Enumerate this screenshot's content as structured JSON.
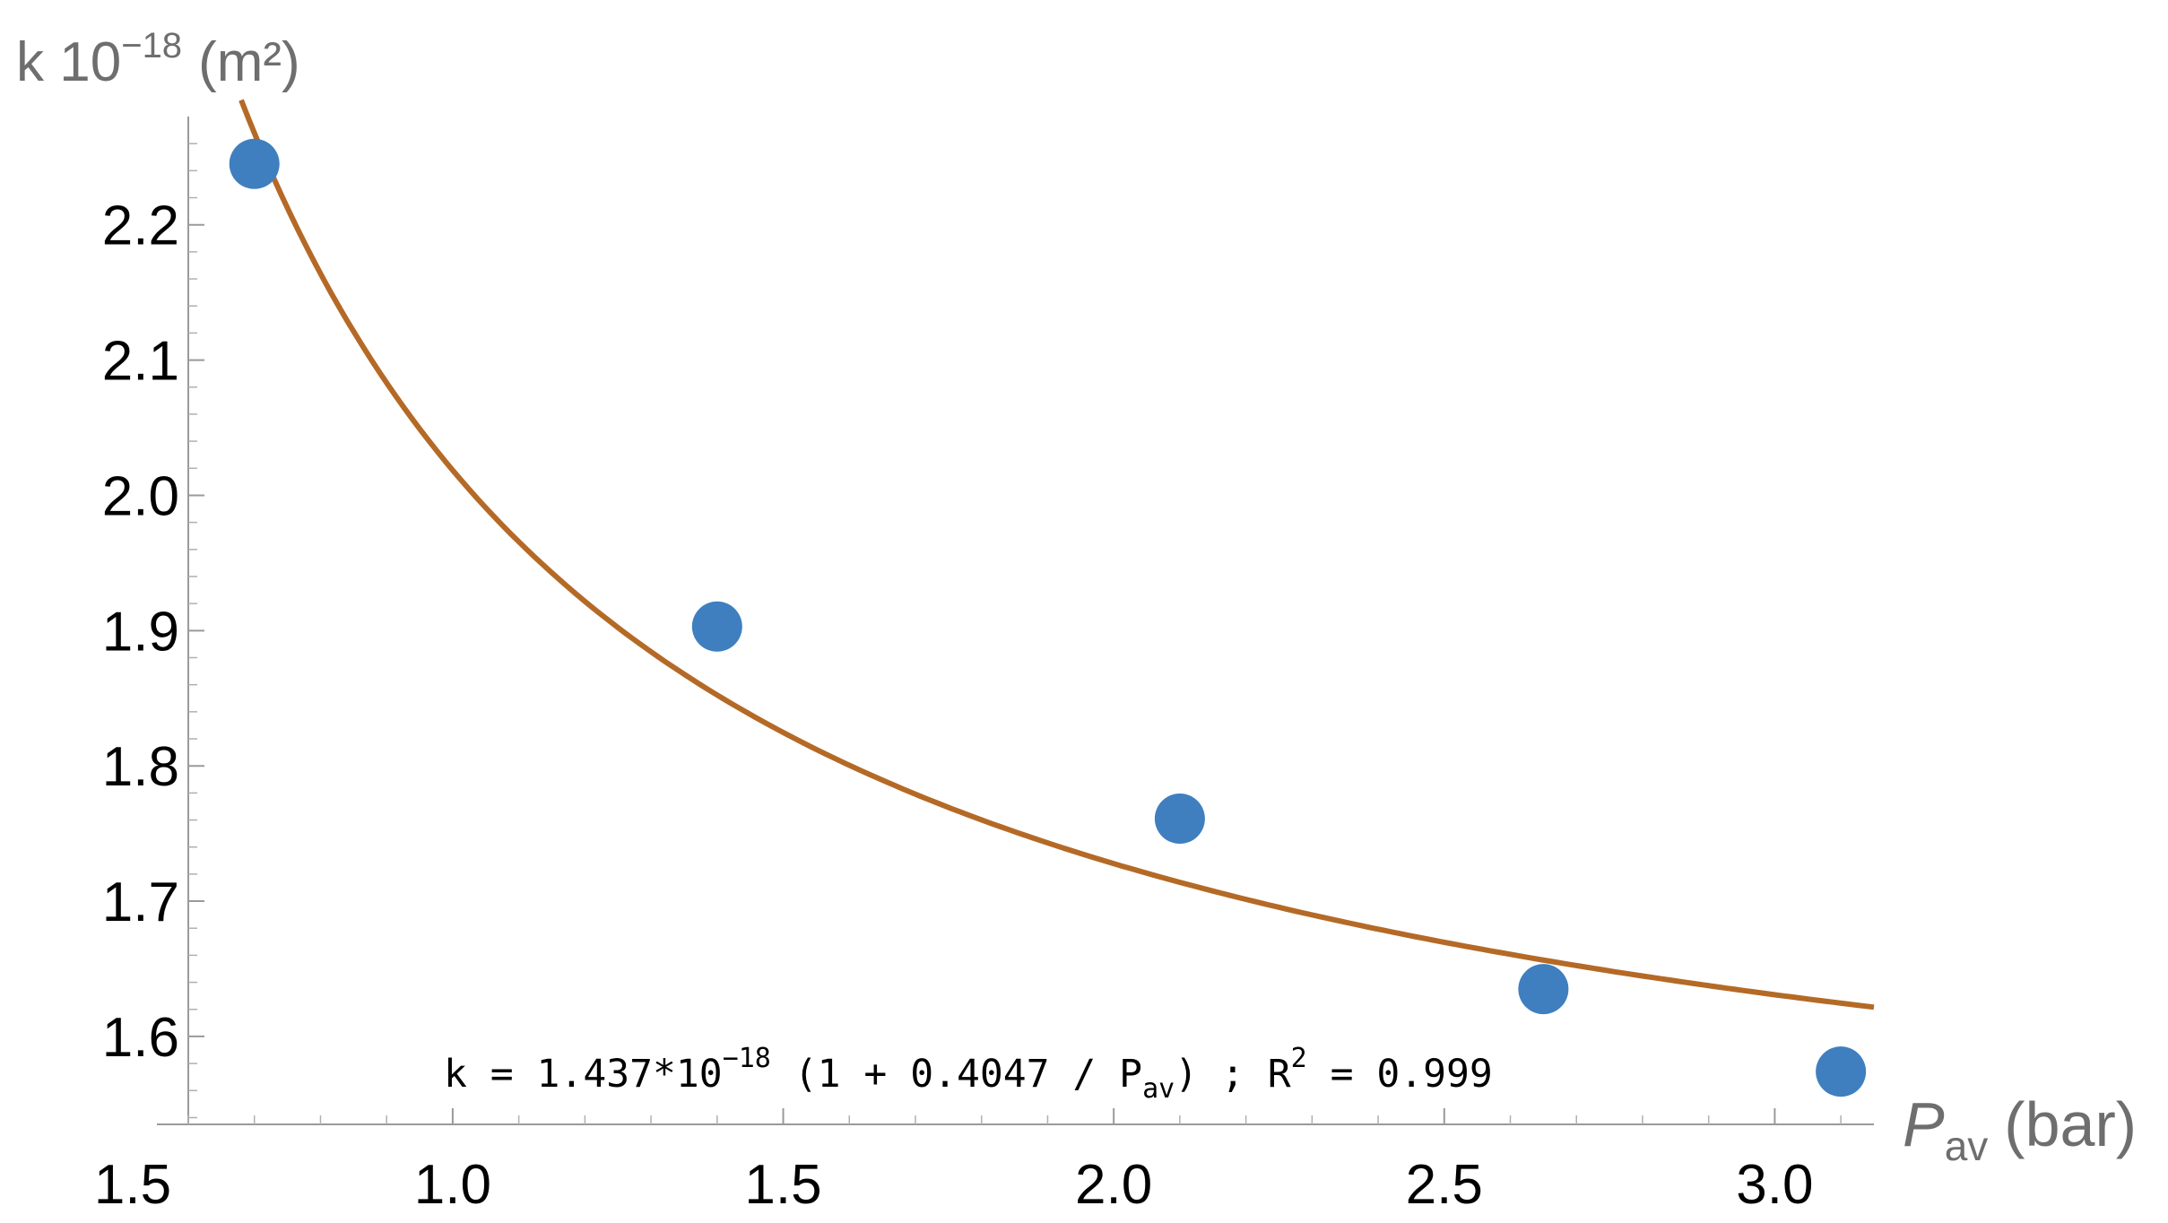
{
  "chart_data": {
    "type": "scatter",
    "ylabel": {
      "base": "k 10",
      "exponent": "−18",
      "unit": "(m²)"
    },
    "xlabel": {
      "symbol": "P",
      "subscript": "av",
      "unit": "(bar)"
    },
    "x_axis_origin_label": "1.5",
    "xlim": [
      0.6,
      3.15
    ],
    "ylim": [
      1.535,
      2.28
    ],
    "x_ticks": [
      "1.0",
      "1.5",
      "2.0",
      "2.5",
      "3.0"
    ],
    "x_tick_values": [
      1.0,
      1.5,
      2.0,
      2.5,
      3.0
    ],
    "y_ticks": [
      "1.6",
      "1.7",
      "1.8",
      "1.9",
      "2.0",
      "2.1",
      "2.2"
    ],
    "y_tick_values": [
      1.6,
      1.7,
      1.8,
      1.9,
      2.0,
      2.1,
      2.2
    ],
    "points": [
      {
        "x": 0.7,
        "y": 2.245
      },
      {
        "x": 1.4,
        "y": 1.903
      },
      {
        "x": 2.1,
        "y": 1.761
      },
      {
        "x": 2.65,
        "y": 1.635
      },
      {
        "x": 3.1,
        "y": 1.574
      }
    ],
    "fit": {
      "a": 1.437,
      "b": 0.4047,
      "x_range": [
        0.68,
        3.15
      ]
    },
    "equation": {
      "lhs": "k = 1.437*10",
      "exp1": "−18",
      "mid": " (1 + 0.4047 / P",
      "sub": "av",
      "rhs": ") ; R",
      "exp2": "2",
      "tail": " = 0.999"
    },
    "grid": false,
    "colors": {
      "points": "#3f7fbf",
      "fit_line": "#b46a26",
      "axis": "#9a9a9a",
      "axis_title": "#6e6e6e"
    }
  }
}
